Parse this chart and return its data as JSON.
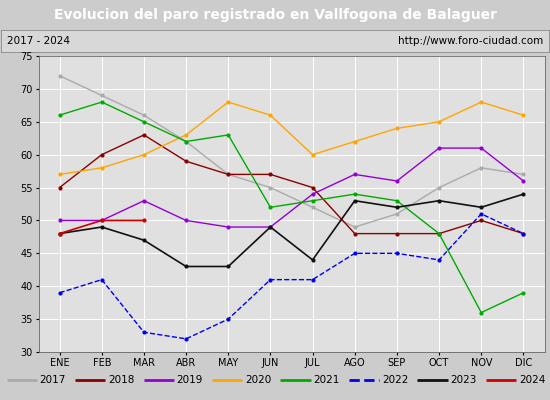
{
  "title": "Evolucion del paro registrado en Vallfogona de Balaguer",
  "subtitle_left": "2017 - 2024",
  "subtitle_right": "http://www.foro-ciudad.com",
  "x_labels": [
    "ENE",
    "FEB",
    "MAR",
    "ABR",
    "MAY",
    "JUN",
    "JUL",
    "AGO",
    "SEP",
    "OCT",
    "NOV",
    "DIC"
  ],
  "ylim": [
    30,
    75
  ],
  "yticks": [
    30,
    35,
    40,
    45,
    50,
    55,
    60,
    65,
    70,
    75
  ],
  "title_bg_color": "#3a6ab5",
  "title_font_color": "#ffffff",
  "subtitle_bg_color": "#d8d8d8",
  "plot_bg_color": "#e0e0e0",
  "grid_color": "#ffffff",
  "legend_bg_color": "#e8e8e8",
  "year_data": {
    "2017": [
      72,
      69,
      66,
      62,
      57,
      55,
      52,
      49,
      51,
      55,
      58,
      57
    ],
    "2018": [
      55,
      60,
      63,
      59,
      57,
      57,
      55,
      48,
      48,
      48,
      50,
      48
    ],
    "2019": [
      50,
      50,
      53,
      50,
      49,
      49,
      54,
      57,
      56,
      61,
      61,
      56
    ],
    "2020": [
      57,
      58,
      60,
      63,
      68,
      66,
      60,
      62,
      64,
      65,
      68,
      66
    ],
    "2021": [
      66,
      68,
      65,
      62,
      63,
      52,
      53,
      54,
      53,
      48,
      36,
      39
    ],
    "2022": [
      39,
      41,
      33,
      32,
      35,
      41,
      41,
      45,
      45,
      44,
      51,
      48
    ],
    "2023": [
      48,
      49,
      47,
      43,
      43,
      49,
      44,
      53,
      52,
      53,
      52,
      54
    ],
    "2024": [
      48,
      50,
      50,
      null,
      null,
      null,
      null,
      null,
      null,
      null,
      null,
      null
    ]
  },
  "year_colors": {
    "2017": "#aaaaaa",
    "2018": "#8b0000",
    "2019": "#9400d3",
    "2020": "#ffa500",
    "2021": "#00aa00",
    "2022": "#0000ee",
    "2023": "#111111",
    "2024": "#cc0000"
  },
  "year_styles": {
    "2017": "-",
    "2018": "-",
    "2019": "-",
    "2020": "-",
    "2021": "-",
    "2022": "--",
    "2023": "-",
    "2024": "-"
  },
  "year_linewidths": {
    "2017": 1.0,
    "2018": 1.0,
    "2019": 1.0,
    "2020": 1.0,
    "2021": 1.0,
    "2022": 1.0,
    "2023": 1.2,
    "2024": 1.2
  },
  "legend_years": [
    "2017",
    "2018",
    "2019",
    "2020",
    "2021",
    "2022",
    "2023",
    "2024"
  ]
}
